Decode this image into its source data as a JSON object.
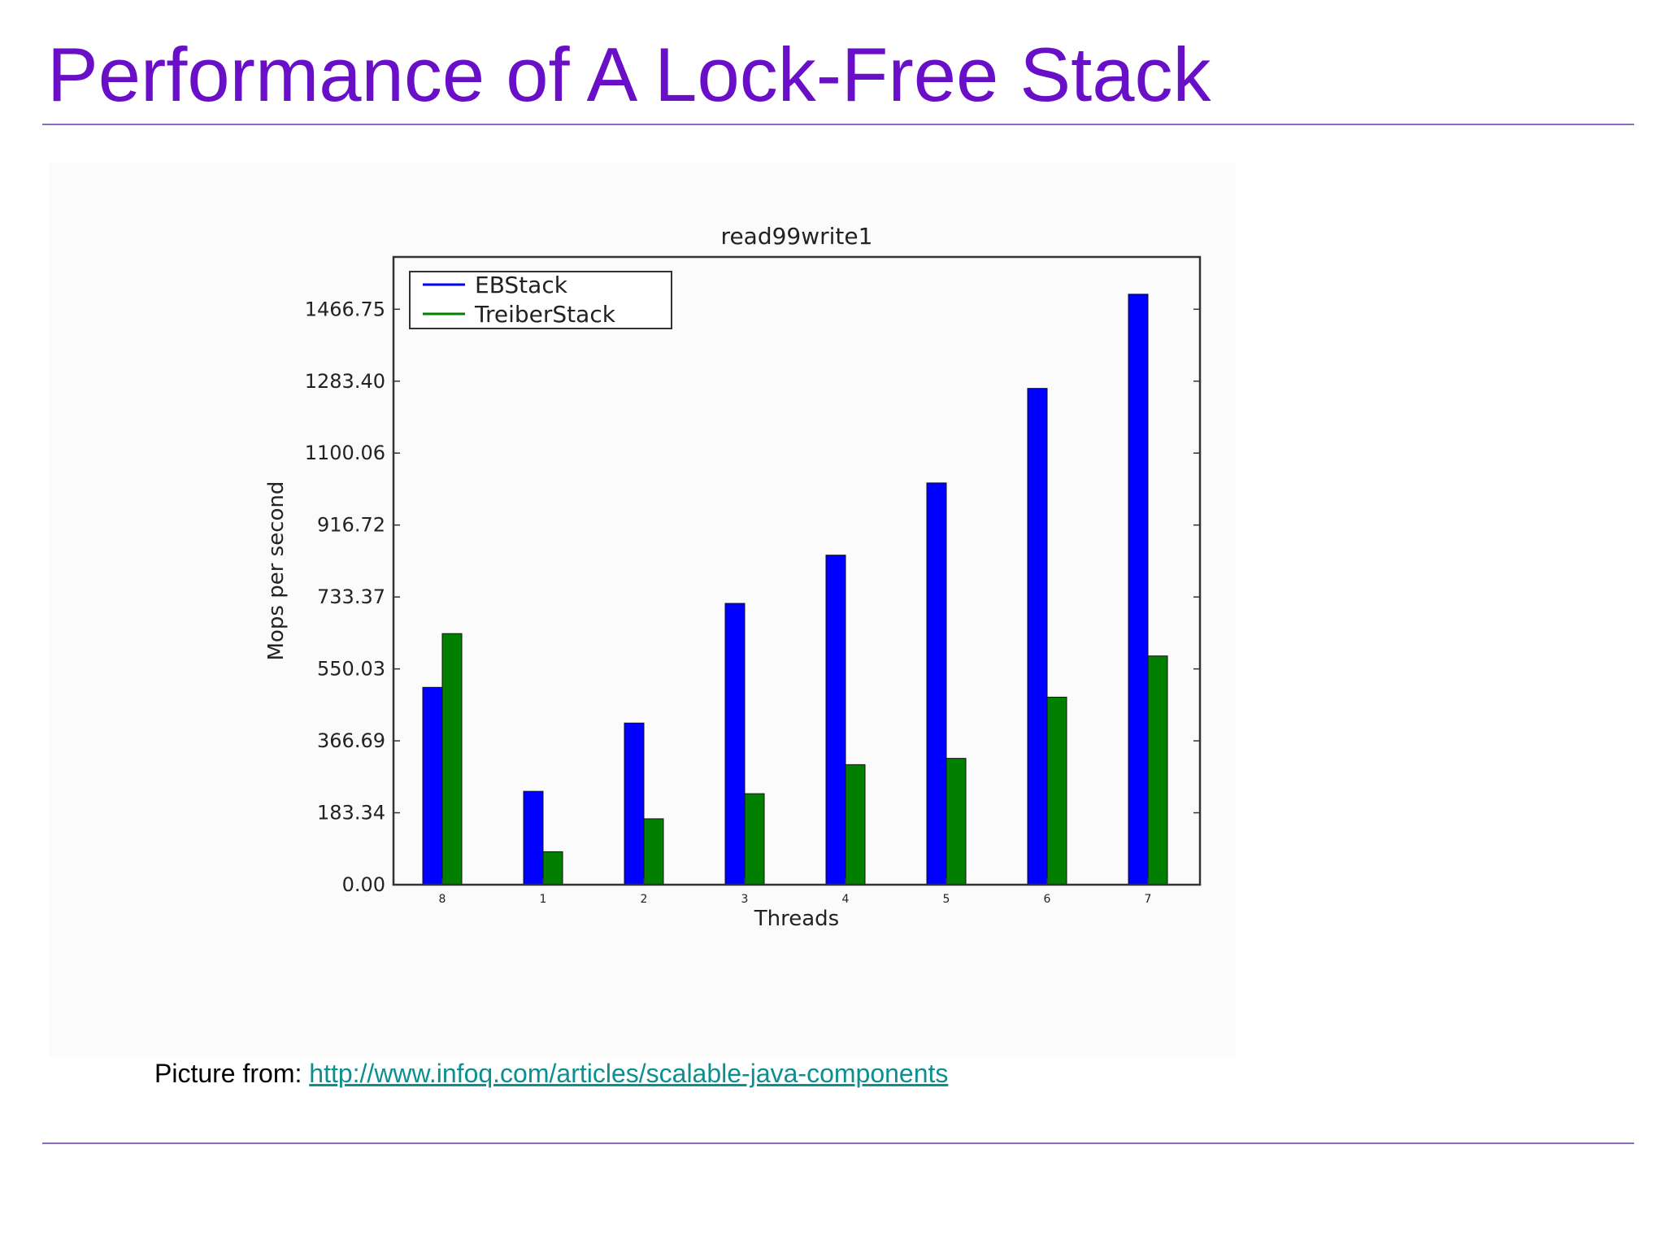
{
  "slide": {
    "title": "Performance of A Lock-Free Stack",
    "caption_prefix": "Picture from:",
    "caption_link": "http://www.infoq.com/articles/scalable-java-components",
    "title_color": "#6a0fc8",
    "link_color": "#0e8f8f"
  },
  "chart_data": {
    "type": "bar",
    "title": "read99write1",
    "xlabel": "Threads",
    "ylabel": "Mops per second",
    "categories": [
      "8",
      "1",
      "2",
      "3",
      "4",
      "5",
      "6",
      "7"
    ],
    "series": [
      {
        "name": "EBStack",
        "color": "#0000ff",
        "values": [
          503,
          238,
          412,
          717,
          840,
          1024,
          1265,
          1505
        ]
      },
      {
        "name": "TreiberStack",
        "color": "#007f00",
        "values": [
          640,
          84,
          168,
          232,
          306,
          322,
          478,
          583
        ]
      }
    ],
    "yticks": [
      "0.00",
      "183.34",
      "366.69",
      "550.03",
      "733.37",
      "916.72",
      "1100.06",
      "1283.40",
      "1466.75"
    ],
    "ylim": [
      0,
      1600
    ],
    "legend_position": "top-left",
    "grid": false
  }
}
